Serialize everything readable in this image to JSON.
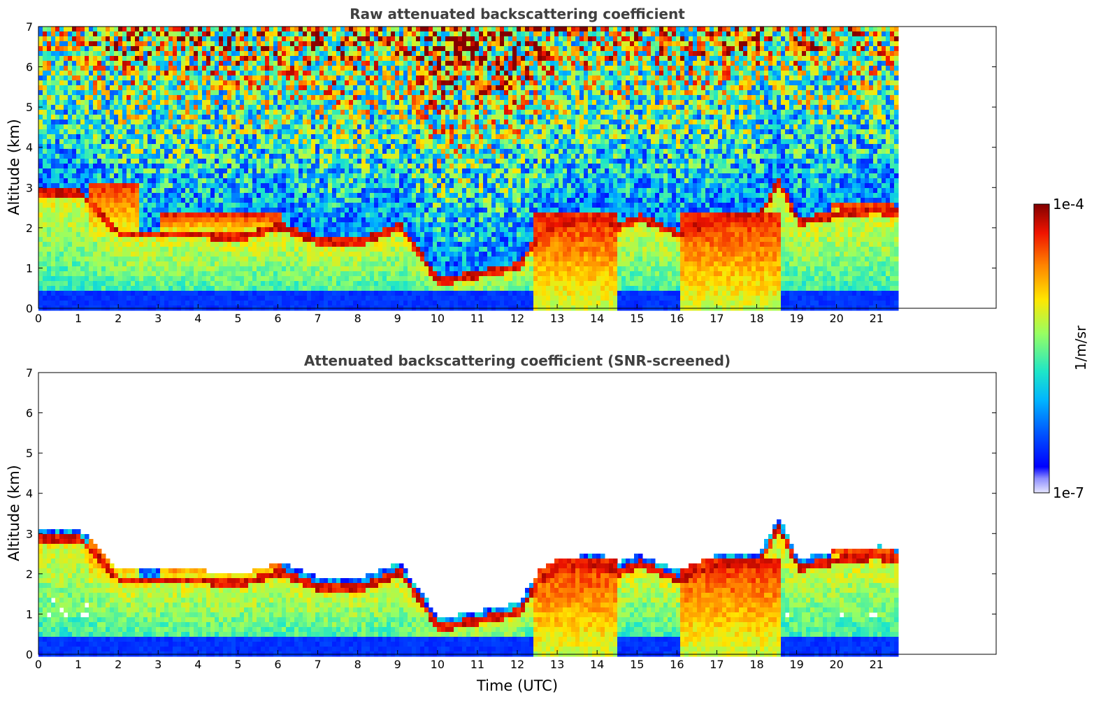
{
  "chart_data": [
    {
      "type": "heatmap",
      "title": "Raw attenuated backscattering coefficient",
      "ylabel": "Altitude (km)",
      "xlabel": "",
      "xlim": [
        0,
        24
      ],
      "ylim": [
        0,
        7
      ],
      "x_ticks": [
        "0",
        "1",
        "2",
        "3",
        "4",
        "5",
        "6",
        "7",
        "8",
        "9",
        "10",
        "11",
        "12",
        "13",
        "14",
        "15",
        "16",
        "17",
        "18",
        "19",
        "20",
        "21"
      ],
      "y_ticks": [
        "0",
        "1",
        "2",
        "3",
        "4",
        "5",
        "6",
        "7"
      ],
      "data_extent_hours": [
        0,
        21.45
      ],
      "screened": false,
      "features": {
        "layer_tops_km": [
          [
            0,
            3.0
          ],
          [
            1,
            3.0
          ],
          [
            1.5,
            2.5
          ],
          [
            2,
            2.0
          ],
          [
            3,
            2.0
          ],
          [
            4,
            2.0
          ],
          [
            5,
            1.9
          ],
          [
            6,
            2.2
          ],
          [
            7,
            1.8
          ],
          [
            8,
            1.8
          ],
          [
            9,
            2.2
          ],
          [
            10,
            0.8
          ],
          [
            11,
            1.0
          ],
          [
            12,
            1.2
          ],
          [
            12.5,
            2.0
          ],
          [
            13,
            2.3
          ],
          [
            14,
            2.4
          ],
          [
            14.5,
            2.2
          ],
          [
            15,
            2.4
          ],
          [
            16,
            2.0
          ],
          [
            17,
            2.4
          ],
          [
            18,
            2.4
          ],
          [
            18.5,
            3.3
          ],
          [
            19,
            2.3
          ],
          [
            20,
            2.5
          ],
          [
            21,
            2.6
          ],
          [
            21.45,
            2.5
          ]
        ],
        "intense_cloud_layers": [
          {
            "start_h": 1.2,
            "end_h": 2.5,
            "top_km": 3.2,
            "base_km": 1.8
          },
          {
            "start_h": 3.0,
            "end_h": 6.0,
            "top_km": 2.4,
            "base_km": 1.9
          },
          {
            "start_h": 12.3,
            "end_h": 14.5,
            "top_km": 2.5,
            "base_km": 0
          },
          {
            "start_h": 16.0,
            "end_h": 18.5,
            "top_km": 2.5,
            "base_km": 0
          },
          {
            "start_h": 19.8,
            "end_h": 21.4,
            "top_km": 2.65,
            "base_km": 2.45
          }
        ]
      }
    },
    {
      "type": "heatmap",
      "title": "Attenuated backscattering coefficient (SNR-screened)",
      "ylabel": "Altitude (km)",
      "xlabel": "Time (UTC)",
      "xlim": [
        0,
        24
      ],
      "ylim": [
        0,
        7
      ],
      "x_ticks": [
        "0",
        "1",
        "2",
        "3",
        "4",
        "5",
        "6",
        "7",
        "8",
        "9",
        "10",
        "11",
        "12",
        "13",
        "14",
        "15",
        "16",
        "17",
        "18",
        "19",
        "20",
        "21"
      ],
      "y_ticks": [
        "0",
        "1",
        "2",
        "3",
        "4",
        "5",
        "6",
        "7"
      ],
      "data_extent_hours": [
        0,
        21.45
      ],
      "screened": true
    }
  ],
  "colorbar": {
    "label": "1/m/sr",
    "max_label": "1e-4",
    "min_label": "1e-7",
    "scale": "log",
    "range": [
      1e-07,
      0.0001
    ],
    "colormap": "jet"
  }
}
